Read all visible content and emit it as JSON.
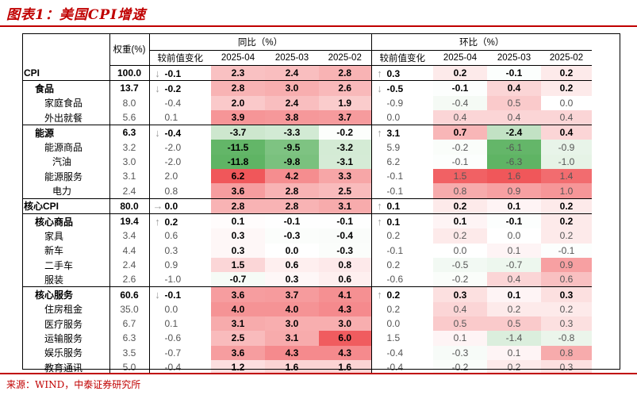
{
  "title": "图表1：美国CPI增速",
  "source": "来源：WIND，中泰证券研究所",
  "headers": {
    "weight": "权重(%)",
    "yoy": "同比（%）",
    "mom": "环比（%）",
    "cols": [
      "较前值变化",
      "2025-04",
      "2025-03",
      "2025-02",
      "较前值变化",
      "2025-04",
      "2025-03",
      "2025-02"
    ]
  },
  "rows": [
    {
      "name": "CPI",
      "level": 0,
      "bold": true,
      "weight": "100.0",
      "yc": "-0.1",
      "ya": "down",
      "y": [
        "2.3",
        "2.4",
        "2.8"
      ],
      "mc": "0.3",
      "ma": "up",
      "m": [
        "0.2",
        "-0.1",
        "0.2"
      ],
      "sep": true
    },
    {
      "name": "食品",
      "level": 1,
      "bold": true,
      "weight": "13.7",
      "yc": "-0.2",
      "ya": "down",
      "y": [
        "2.8",
        "3.0",
        "2.6"
      ],
      "mc": "-0.5",
      "ma": "down",
      "m": [
        "-0.1",
        "0.4",
        "0.2"
      ],
      "sep": false
    },
    {
      "name": "家庭食品",
      "level": 2,
      "bold": false,
      "weight": "8.0",
      "yc": "-0.4",
      "ya": "",
      "y": [
        "2.0",
        "2.4",
        "1.9"
      ],
      "mc": "-0.9",
      "ma": "",
      "m": [
        "-0.4",
        "0.5",
        "0.0"
      ],
      "sep": false
    },
    {
      "name": "外出就餐",
      "level": 2,
      "bold": false,
      "weight": "5.6",
      "yc": "0.1",
      "ya": "",
      "y": [
        "3.9",
        "3.8",
        "3.7"
      ],
      "mc": "0.0",
      "ma": "",
      "m": [
        "0.4",
        "0.4",
        "0.4"
      ],
      "sep": true
    },
    {
      "name": "能源",
      "level": 1,
      "bold": true,
      "weight": "6.3",
      "yc": "-0.4",
      "ya": "down",
      "y": [
        "-3.7",
        "-3.3",
        "-0.2"
      ],
      "mc": "3.1",
      "ma": "up",
      "m": [
        "0.7",
        "-2.4",
        "0.4"
      ],
      "sep": false
    },
    {
      "name": "能源商品",
      "level": 2,
      "bold": false,
      "weight": "3.2",
      "yc": "-2.0",
      "ya": "",
      "y": [
        "-11.5",
        "-9.5",
        "-3.2"
      ],
      "mc": "5.9",
      "ma": "",
      "m": [
        "-0.2",
        "-6.1",
        "-0.9"
      ],
      "sep": false
    },
    {
      "name": "汽油",
      "level": 3,
      "bold": false,
      "weight": "3.0",
      "yc": "-2.0",
      "ya": "",
      "y": [
        "-11.8",
        "-9.8",
        "-3.1"
      ],
      "mc": "6.2",
      "ma": "",
      "m": [
        "-0.1",
        "-6.3",
        "-1.0"
      ],
      "sep": false
    },
    {
      "name": "能源服务",
      "level": 2,
      "bold": false,
      "weight": "3.1",
      "yc": "2.0",
      "ya": "",
      "y": [
        "6.2",
        "4.2",
        "3.3"
      ],
      "mc": "-0.1",
      "ma": "",
      "m": [
        "1.5",
        "1.6",
        "1.4"
      ],
      "sep": false
    },
    {
      "name": "电力",
      "level": 3,
      "bold": false,
      "weight": "2.4",
      "yc": "0.8",
      "ya": "",
      "y": [
        "3.6",
        "2.8",
        "2.5"
      ],
      "mc": "-0.1",
      "ma": "",
      "m": [
        "0.8",
        "0.9",
        "1.0"
      ],
      "sep": true
    },
    {
      "name": "核心CPI",
      "level": 0,
      "bold": true,
      "weight": "80.0",
      "yc": "0.0",
      "ya": "right",
      "y": [
        "2.8",
        "2.8",
        "3.1"
      ],
      "mc": "0.1",
      "ma": "up",
      "m": [
        "0.2",
        "0.1",
        "0.2"
      ],
      "sep": true
    },
    {
      "name": "核心商品",
      "level": 1,
      "bold": true,
      "weight": "19.4",
      "yc": "0.2",
      "ya": "up",
      "y": [
        "0.1",
        "-0.1",
        "-0.1"
      ],
      "mc": "0.1",
      "ma": "up",
      "m": [
        "0.1",
        "-0.1",
        "0.2"
      ],
      "sep": false
    },
    {
      "name": "家具",
      "level": 2,
      "bold": false,
      "weight": "3.4",
      "yc": "0.6",
      "ya": "",
      "y": [
        "0.3",
        "-0.3",
        "-0.4"
      ],
      "mc": "0.2",
      "ma": "",
      "m": [
        "0.2",
        "0.0",
        "0.2"
      ],
      "sep": false
    },
    {
      "name": "新车",
      "level": 2,
      "bold": false,
      "weight": "4.4",
      "yc": "0.3",
      "ya": "",
      "y": [
        "0.3",
        "0.0",
        "-0.3"
      ],
      "mc": "-0.1",
      "ma": "",
      "m": [
        "0.0",
        "0.1",
        "-0.1"
      ],
      "sep": false
    },
    {
      "name": "二手车",
      "level": 2,
      "bold": false,
      "weight": "2.4",
      "yc": "0.9",
      "ya": "",
      "y": [
        "1.5",
        "0.6",
        "0.8"
      ],
      "mc": "0.2",
      "ma": "",
      "m": [
        "-0.5",
        "-0.7",
        "0.9"
      ],
      "sep": false
    },
    {
      "name": "服装",
      "level": 2,
      "bold": false,
      "weight": "2.6",
      "yc": "-1.0",
      "ya": "",
      "y": [
        "-0.7",
        "0.3",
        "0.6"
      ],
      "mc": "-0.6",
      "ma": "",
      "m": [
        "-0.2",
        "0.4",
        "0.6"
      ],
      "sep": true
    },
    {
      "name": "核心服务",
      "level": 1,
      "bold": true,
      "weight": "60.6",
      "yc": "-0.1",
      "ya": "down",
      "y": [
        "3.6",
        "3.7",
        "4.1"
      ],
      "mc": "0.2",
      "ma": "up",
      "m": [
        "0.3",
        "0.1",
        "0.3"
      ],
      "sep": false
    },
    {
      "name": "住房租金",
      "level": 2,
      "bold": false,
      "weight": "35.0",
      "yc": "0.0",
      "ya": "",
      "y": [
        "4.0",
        "4.0",
        "4.3"
      ],
      "mc": "0.2",
      "ma": "",
      "m": [
        "0.4",
        "0.2",
        "0.2"
      ],
      "sep": false
    },
    {
      "name": "医疗服务",
      "level": 2,
      "bold": false,
      "weight": "6.7",
      "yc": "0.1",
      "ya": "",
      "y": [
        "3.1",
        "3.0",
        "3.0"
      ],
      "mc": "0.0",
      "ma": "",
      "m": [
        "0.5",
        "0.5",
        "0.3"
      ],
      "sep": false
    },
    {
      "name": "运输服务",
      "level": 2,
      "bold": false,
      "weight": "6.3",
      "yc": "-0.6",
      "ya": "",
      "y": [
        "2.5",
        "3.1",
        "6.0"
      ],
      "mc": "1.5",
      "ma": "",
      "m": [
        "0.1",
        "-1.4",
        "-0.8"
      ],
      "sep": false
    },
    {
      "name": "娱乐服务",
      "level": 2,
      "bold": false,
      "weight": "3.5",
      "yc": "-0.7",
      "ya": "",
      "y": [
        "3.6",
        "4.3",
        "4.3"
      ],
      "mc": "-0.4",
      "ma": "",
      "m": [
        "-0.3",
        "0.1",
        "0.8"
      ],
      "sep": false
    },
    {
      "name": "教育通讯",
      "level": 2,
      "bold": false,
      "weight": "5.0",
      "yc": "-0.4",
      "ya": "",
      "y": [
        "1.2",
        "1.6",
        "1.6"
      ],
      "mc": "-0.4",
      "ma": "",
      "m": [
        "-0.2",
        "0.2",
        "0.3"
      ],
      "sep": false
    }
  ],
  "icons": {
    "up": "arrow-up-icon",
    "down": "arrow-down-icon",
    "right": "arrow-right-icon"
  },
  "colors": {
    "title": "#c00000",
    "pos_max": "#f0575a",
    "neg_max": "#5fb464",
    "arrow": "#9a9a9a"
  }
}
